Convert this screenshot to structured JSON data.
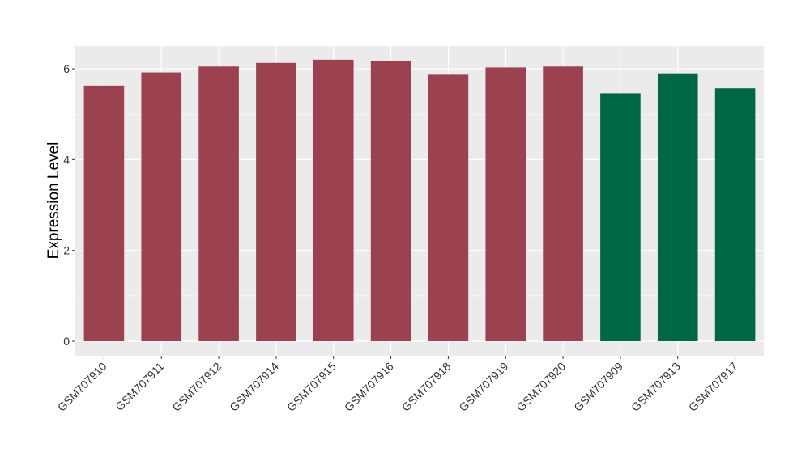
{
  "chart_data": {
    "type": "bar",
    "title": "",
    "xlabel": "",
    "ylabel": "Expression Level",
    "ylim": [
      -0.32,
      6.5
    ],
    "yticks": [
      0,
      2,
      4,
      6
    ],
    "grid": true,
    "legend": "none",
    "categories": [
      "GSM707910",
      "GSM707911",
      "GSM707912",
      "GSM707914",
      "GSM707915",
      "GSM707916",
      "GSM707918",
      "GSM707919",
      "GSM707920",
      "GSM707909",
      "GSM707913",
      "GSM707917"
    ],
    "values": [
      5.63,
      5.92,
      6.05,
      6.13,
      6.2,
      6.17,
      5.87,
      6.03,
      6.05,
      5.46,
      5.9,
      5.57
    ],
    "group_colors": [
      "#9b4150",
      "#9b4150",
      "#9b4150",
      "#9b4150",
      "#9b4150",
      "#9b4150",
      "#9b4150",
      "#9b4150",
      "#9b4150",
      "#006745",
      "#006745",
      "#006745"
    ],
    "colors": {
      "group_a": "#9b4150",
      "group_b": "#006745",
      "panel_background": "#ebebeb",
      "gridline": "#ffffff"
    }
  }
}
